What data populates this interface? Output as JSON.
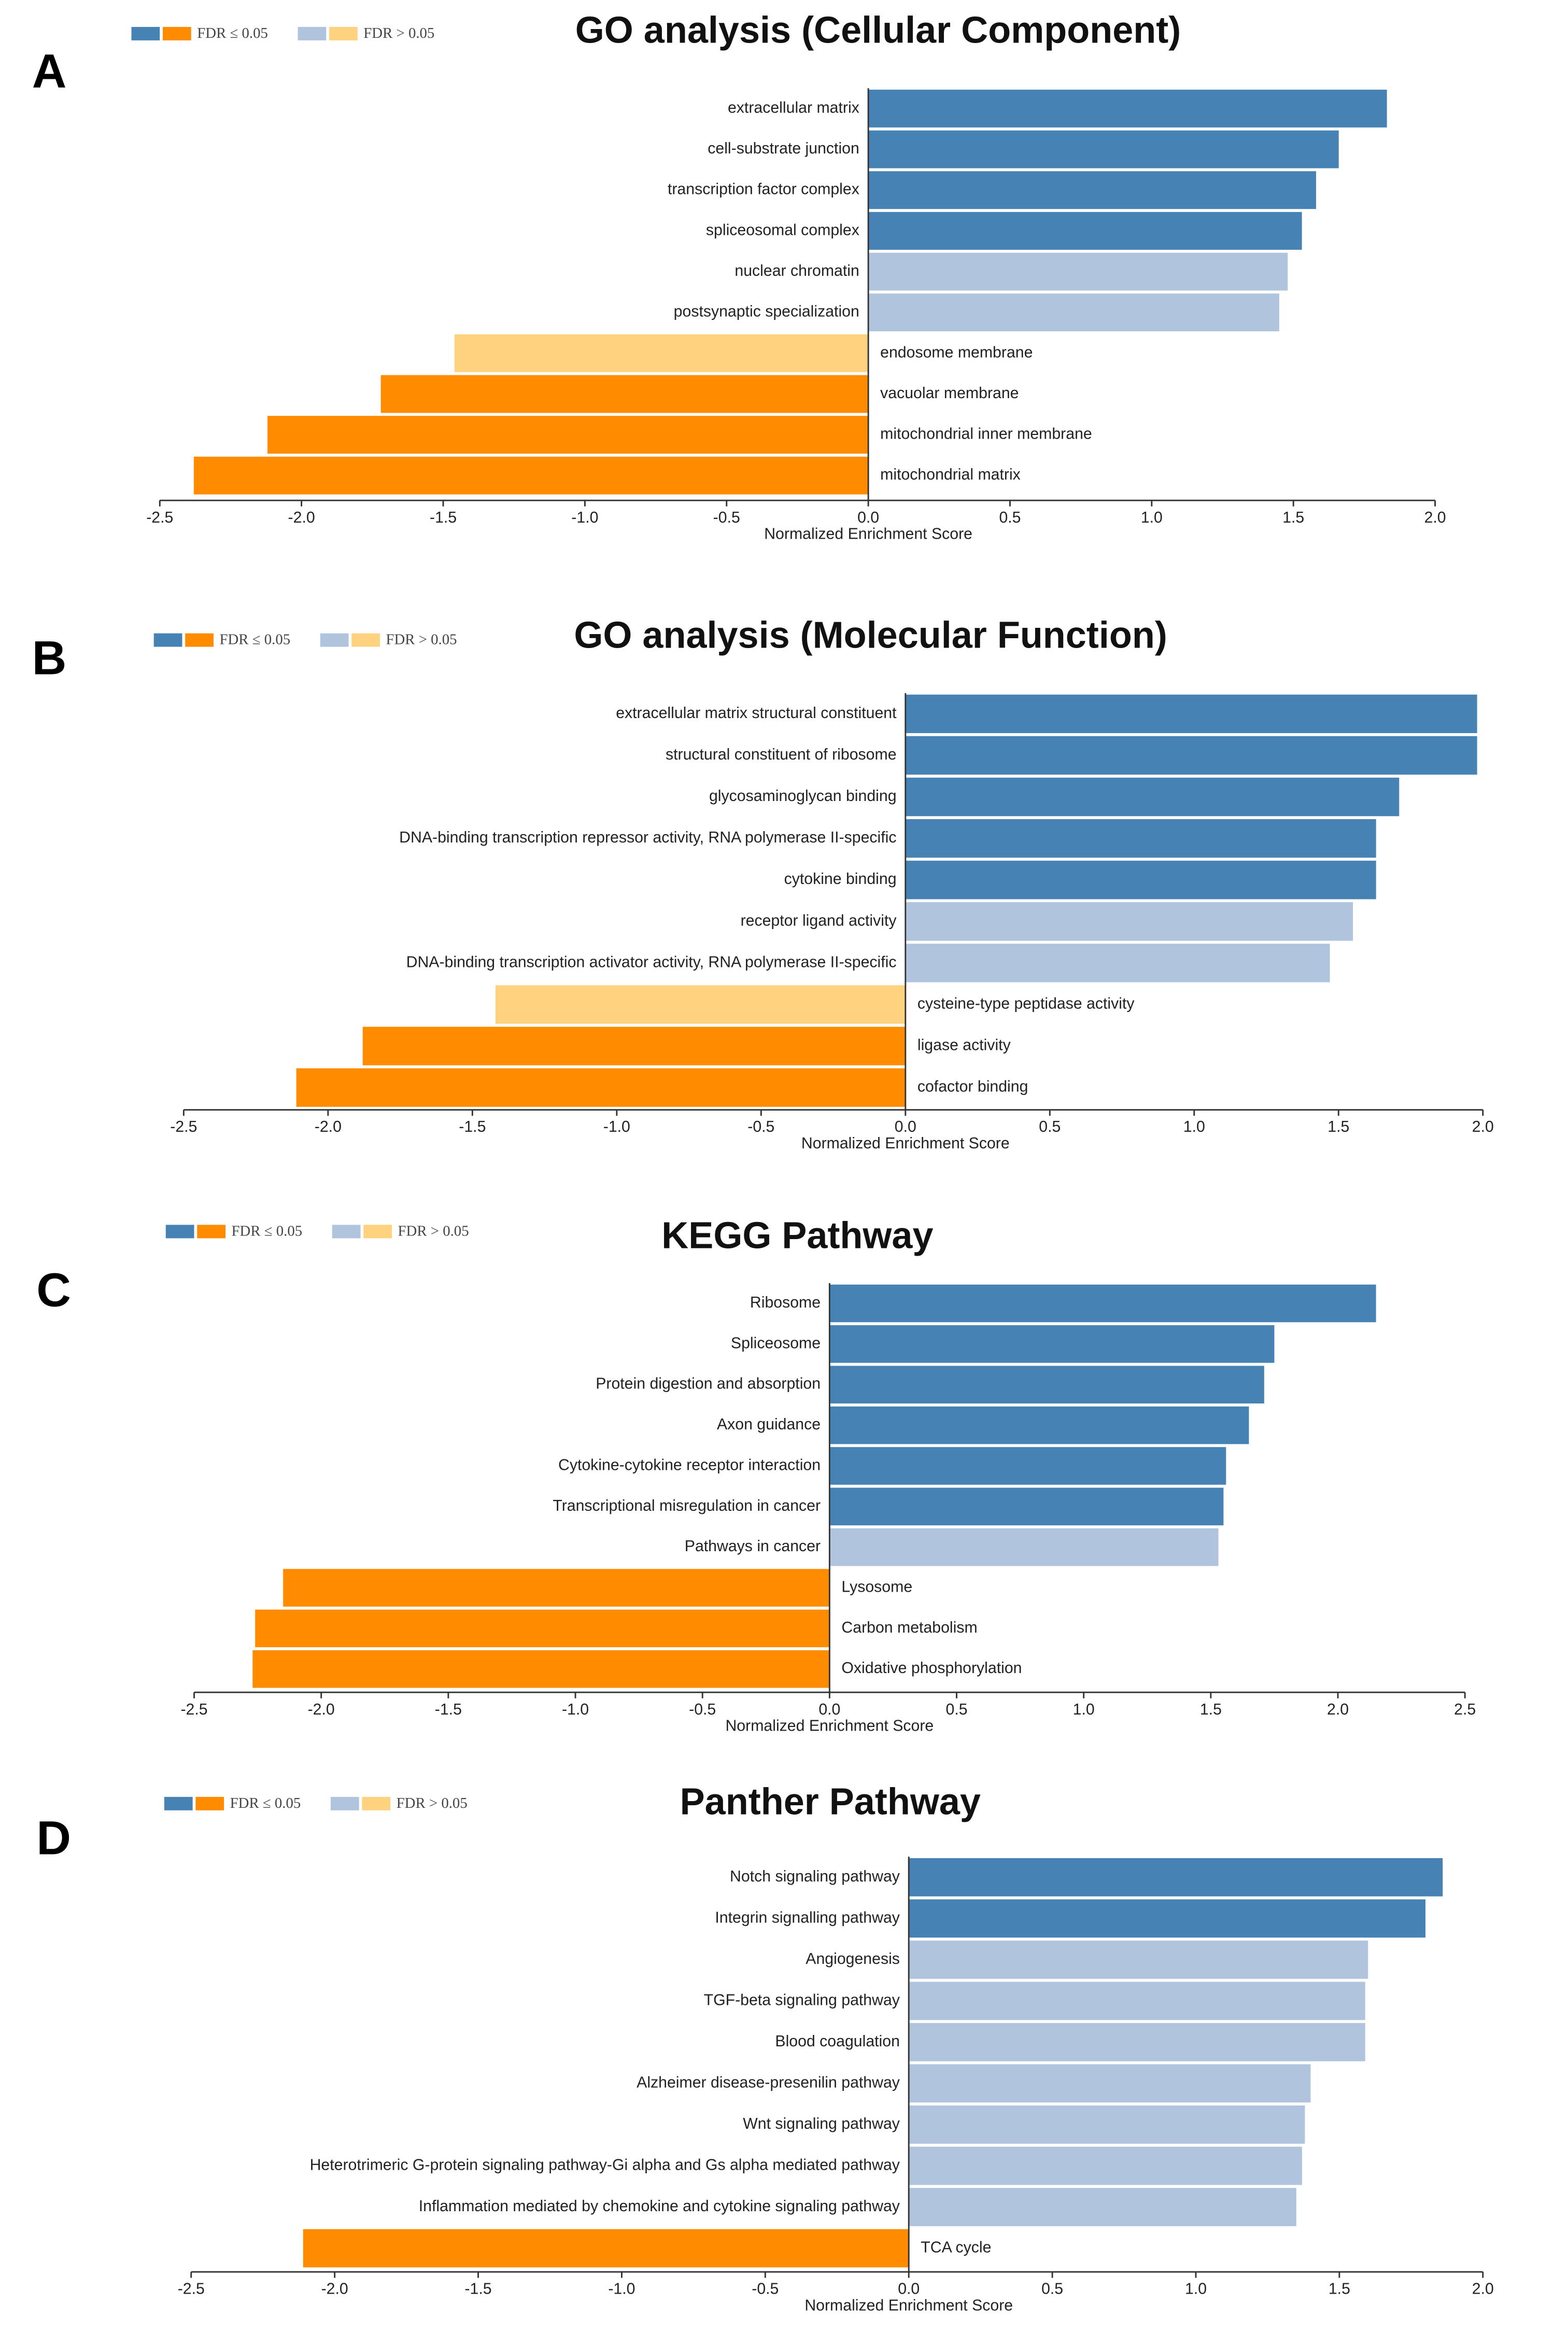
{
  "chart_data": [
    {
      "type": "hbar",
      "panel": "A",
      "title": "GO analysis (Cellular Component)",
      "xlabel": "Normalized Enrichment Score",
      "legend": [
        {
          "label": "FDR ≤ 0.05",
          "colors": [
            "#4682b4",
            "#ff8c00"
          ]
        },
        {
          "label": "FDR > 0.05",
          "colors": [
            "#b0c4de",
            "#ffd280"
          ]
        }
      ],
      "categories": [
        "extracellular matrix",
        "cell-substrate junction",
        "transcription factor complex",
        "spliceosomal complex",
        "nuclear chromatin",
        "postsynaptic specialization",
        "endosome membrane",
        "vacuolar membrane",
        "mitochondrial inner membrane",
        "mitochondrial matrix"
      ],
      "values": [
        1.83,
        1.66,
        1.58,
        1.53,
        1.48,
        1.45,
        -1.46,
        -1.72,
        -2.12,
        -2.38
      ],
      "colors": [
        "#4682b4",
        "#4682b4",
        "#4682b4",
        "#4682b4",
        "#b0c4de",
        "#b0c4de",
        "#ffd280",
        "#ff8c00",
        "#ff8c00",
        "#ff8c00"
      ],
      "xlim": [
        -2.5,
        2.0
      ],
      "xticks": [
        -2.5,
        {
          "value": -2,
          "label": "-2.0"
        },
        -1.5,
        {
          "value": -1,
          "label": "-1.0"
        },
        -0.5,
        {
          "value": 0,
          "label": "0.0"
        },
        0.5,
        {
          "value": 1,
          "label": "1.0"
        },
        1.5,
        {
          "value": 2,
          "label": "2.0"
        }
      ]
    },
    {
      "type": "hbar",
      "panel": "B",
      "title": "GO analysis (Molecular Function)",
      "xlabel": "Normalized Enrichment Score",
      "legend": [
        {
          "label": "FDR ≤ 0.05",
          "colors": [
            "#4682b4",
            "#ff8c00"
          ]
        },
        {
          "label": "FDR > 0.05",
          "colors": [
            "#b0c4de",
            "#ffd280"
          ]
        }
      ],
      "categories": [
        "extracellular matrix structural constituent",
        "structural constituent of ribosome",
        "glycosaminoglycan binding",
        "DNA-binding transcription repressor activity, RNA polymerase II-specific",
        "cytokine binding",
        "receptor ligand activity",
        "DNA-binding transcription activator activity, RNA polymerase II-specific",
        "cysteine-type peptidase activity",
        "ligase activity",
        "cofactor binding"
      ],
      "values": [
        1.98,
        1.98,
        1.71,
        1.63,
        1.63,
        1.55,
        1.47,
        -1.42,
        -1.88,
        -2.11
      ],
      "colors": [
        "#4682b4",
        "#4682b4",
        "#4682b4",
        "#4682b4",
        "#4682b4",
        "#b0c4de",
        "#b0c4de",
        "#ffd280",
        "#ff8c00",
        "#ff8c00"
      ],
      "xlim": [
        -2.5,
        2.0
      ],
      "xticks": [
        -2.5,
        {
          "value": -2,
          "label": "-2.0"
        },
        -1.5,
        {
          "value": -1,
          "label": "-1.0"
        },
        -0.5,
        {
          "value": 0,
          "label": "0.0"
        },
        0.5,
        {
          "value": 1,
          "label": "1.0"
        },
        1.5,
        {
          "value": 2,
          "label": "2.0"
        }
      ]
    },
    {
      "type": "hbar",
      "panel": "C",
      "title": "KEGG Pathway",
      "xlabel": "Normalized Enrichment Score",
      "legend": [
        {
          "label": "FDR ≤ 0.05",
          "colors": [
            "#4682b4",
            "#ff8c00"
          ]
        },
        {
          "label": "FDR > 0.05",
          "colors": [
            "#b0c4de",
            "#ffd280"
          ]
        }
      ],
      "categories": [
        "Ribosome",
        "Spliceosome",
        "Protein digestion and absorption",
        "Axon guidance",
        "Cytokine-cytokine receptor interaction",
        "Transcriptional misregulation in cancer",
        "Pathways in cancer",
        "Lysosome",
        "Carbon metabolism",
        "Oxidative phosphorylation"
      ],
      "values": [
        2.15,
        1.75,
        1.71,
        1.65,
        1.56,
        1.55,
        1.53,
        -2.15,
        -2.26,
        -2.27
      ],
      "colors": [
        "#4682b4",
        "#4682b4",
        "#4682b4",
        "#4682b4",
        "#4682b4",
        "#4682b4",
        "#b0c4de",
        "#ff8c00",
        "#ff8c00",
        "#ff8c00"
      ],
      "xlim": [
        -2.5,
        2.5
      ],
      "xticks": [
        -2.5,
        {
          "value": -2,
          "label": "-2.0"
        },
        -1.5,
        {
          "value": -1,
          "label": "-1.0"
        },
        -0.5,
        {
          "value": 0,
          "label": "0.0"
        },
        0.5,
        {
          "value": 1,
          "label": "1.0"
        },
        1.5,
        {
          "value": 2,
          "label": "2.0"
        },
        2.5
      ]
    },
    {
      "type": "hbar",
      "panel": "D",
      "title": "Panther Pathway",
      "xlabel": "Normalized Enrichment Score",
      "legend": [
        {
          "label": "FDR ≤ 0.05",
          "colors": [
            "#4682b4",
            "#ff8c00"
          ]
        },
        {
          "label": "FDR > 0.05",
          "colors": [
            "#b0c4de",
            "#ffd280"
          ]
        }
      ],
      "categories": [
        "Notch signaling pathway",
        "Integrin signalling pathway",
        "Angiogenesis",
        "TGF-beta signaling pathway",
        "Blood coagulation",
        "Alzheimer disease-presenilin pathway",
        "Wnt signaling pathway",
        "Heterotrimeric G-protein signaling pathway-Gi alpha and Gs alpha mediated pathway",
        "Inflammation mediated by chemokine and cytokine signaling pathway",
        "TCA cycle"
      ],
      "values": [
        1.86,
        1.8,
        1.6,
        1.59,
        1.59,
        1.4,
        1.38,
        1.37,
        1.35,
        -2.11
      ],
      "colors": [
        "#4682b4",
        "#4682b4",
        "#b0c4de",
        "#b0c4de",
        "#b0c4de",
        "#b0c4de",
        "#b0c4de",
        "#b0c4de",
        "#b0c4de",
        "#ff8c00"
      ],
      "xlim": [
        -2.5,
        2.0
      ],
      "xticks": [
        -2.5,
        {
          "value": -2,
          "label": "-2.0"
        },
        -1.5,
        {
          "value": -1,
          "label": "-1.0"
        },
        -0.5,
        {
          "value": 0,
          "label": "0.0"
        },
        0.5,
        {
          "value": 1,
          "label": "1.0"
        },
        1.5,
        {
          "value": 2,
          "label": "2.0"
        }
      ]
    }
  ]
}
